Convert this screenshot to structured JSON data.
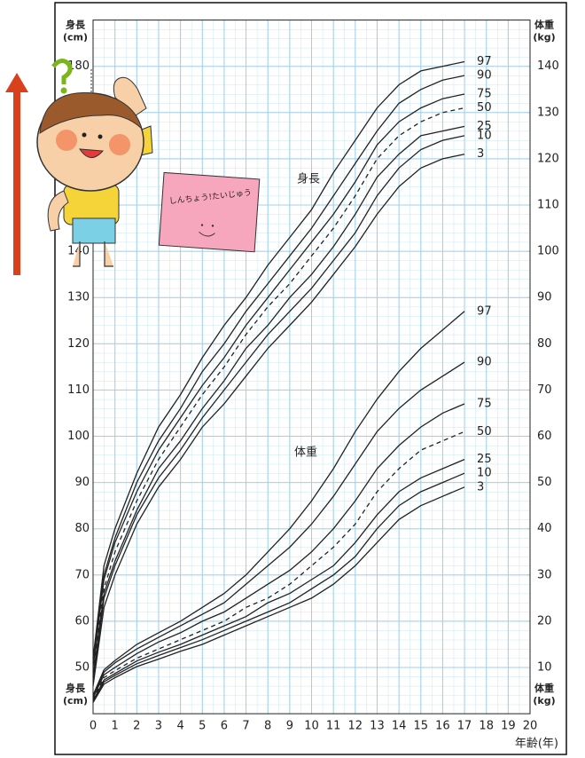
{
  "chart_data": {
    "type": "line",
    "ylabel": "身長",
    "yunit": "(cm)",
    "y2label": "体重",
    "y2unit": "(kg)",
    "xlabel": "年齢(年)",
    "annotations": [
      "身長",
      "体重"
    ],
    "note": "しんちょう!たいじゅう",
    "x": [
      0,
      0.5,
      1,
      2,
      3,
      4,
      5,
      6,
      7,
      8,
      9,
      10,
      11,
      12,
      13,
      14,
      15,
      16,
      17
    ],
    "xlim": [
      0,
      20
    ],
    "xticks": [
      0,
      1,
      2,
      3,
      4,
      5,
      6,
      7,
      8,
      9,
      10,
      11,
      12,
      13,
      14,
      15,
      16,
      17,
      18,
      19,
      20
    ],
    "ylim": [
      40,
      190
    ],
    "yticks": [
      50,
      60,
      70,
      80,
      90,
      100,
      110,
      120,
      130,
      140,
      150,
      160,
      170,
      180
    ],
    "y2lim": [
      0,
      150
    ],
    "y2ticks": [
      10,
      20,
      30,
      40,
      50,
      60,
      70,
      80,
      90,
      100,
      110,
      120,
      130,
      140
    ],
    "grid": true,
    "series": [
      {
        "name": "97",
        "color": "#222",
        "dash": false,
        "values": [
          52,
          72,
          80,
          92,
          102,
          109,
          117,
          124,
          130,
          137,
          143,
          149,
          157,
          164,
          171,
          176,
          179,
          180,
          181
        ]
      },
      {
        "name": "90",
        "color": "#222",
        "dash": false,
        "values": [
          51,
          70,
          78,
          90,
          99,
          106,
          114,
          120,
          127,
          133,
          139,
          145,
          152,
          159,
          166,
          172,
          175,
          177,
          178
        ]
      },
      {
        "name": "75",
        "color": "#222",
        "dash": false,
        "values": [
          50,
          69,
          77,
          88,
          97,
          104,
          111,
          117,
          124,
          130,
          136,
          142,
          148,
          155,
          163,
          168,
          171,
          173,
          174
        ]
      },
      {
        "name": "50",
        "color": "#222",
        "dash": true,
        "values": [
          49,
          67,
          75,
          86,
          95,
          102,
          109,
          115,
          122,
          128,
          133,
          139,
          145,
          152,
          160,
          165,
          168,
          170,
          171
        ]
      },
      {
        "name": "25",
        "color": "#222",
        "dash": false,
        "values": [
          48,
          66,
          73,
          84,
          93,
          99,
          106,
          112,
          119,
          124,
          130,
          135,
          141,
          148,
          156,
          161,
          165,
          166,
          167
        ]
      },
      {
        "name": "10",
        "color": "#222",
        "dash": false,
        "values": [
          47,
          65,
          72,
          83,
          91,
          97,
          104,
          110,
          116,
          122,
          127,
          132,
          138,
          144,
          152,
          158,
          162,
          164,
          165
        ]
      },
      {
        "name": "3",
        "color": "#222",
        "dash": false,
        "values": [
          46,
          63,
          70,
          81,
          89,
          95,
          102,
          107,
          113,
          119,
          124,
          129,
          135,
          141,
          148,
          154,
          158,
          160,
          161
        ]
      },
      {
        "name": "97",
        "color": "#222",
        "dash": false,
        "axis": "y2",
        "values": [
          4,
          9.5,
          11.5,
          15,
          17.5,
          20,
          23,
          26,
          30,
          35,
          40,
          46,
          53,
          61,
          68,
          74,
          79,
          83,
          87
        ]
      },
      {
        "name": "90",
        "color": "#222",
        "dash": false,
        "axis": "y2",
        "values": [
          3.7,
          9,
          11,
          14,
          16.5,
          19,
          21.5,
          24,
          28,
          32,
          36,
          41,
          47,
          54,
          61,
          66,
          70,
          73,
          76
        ]
      },
      {
        "name": "75",
        "color": "#222",
        "dash": false,
        "axis": "y2",
        "values": [
          3.4,
          8.4,
          10,
          13,
          15.5,
          17.5,
          20,
          22,
          25,
          28,
          31,
          35,
          40,
          46,
          53,
          58,
          62,
          65,
          67
        ]
      },
      {
        "name": "50",
        "color": "#222",
        "dash": true,
        "axis": "y2",
        "values": [
          3,
          7.8,
          9.3,
          12,
          14,
          16,
          18,
          20,
          23,
          25,
          28,
          32,
          36,
          41,
          48,
          53,
          57,
          59,
          61
        ]
      },
      {
        "name": "25",
        "color": "#222",
        "dash": false,
        "axis": "y2",
        "values": [
          2.8,
          7.3,
          8.7,
          11.4,
          13.3,
          15,
          17,
          19,
          21,
          24,
          26,
          29,
          32,
          37,
          43,
          48,
          51,
          53,
          55
        ]
      },
      {
        "name": "10",
        "color": "#222",
        "dash": false,
        "axis": "y2",
        "values": [
          2.6,
          6.9,
          8.3,
          10.8,
          12.6,
          14.3,
          16,
          18,
          20,
          22,
          24,
          27,
          30,
          34,
          40,
          45,
          48,
          50,
          52
        ]
      },
      {
        "name": "3",
        "color": "#222",
        "dash": false,
        "axis": "y2",
        "values": [
          2.4,
          6.4,
          7.8,
          10.2,
          11.8,
          13.5,
          15,
          17,
          19,
          21,
          23,
          25,
          28,
          32,
          37,
          42,
          45,
          47,
          49
        ]
      }
    ]
  }
}
